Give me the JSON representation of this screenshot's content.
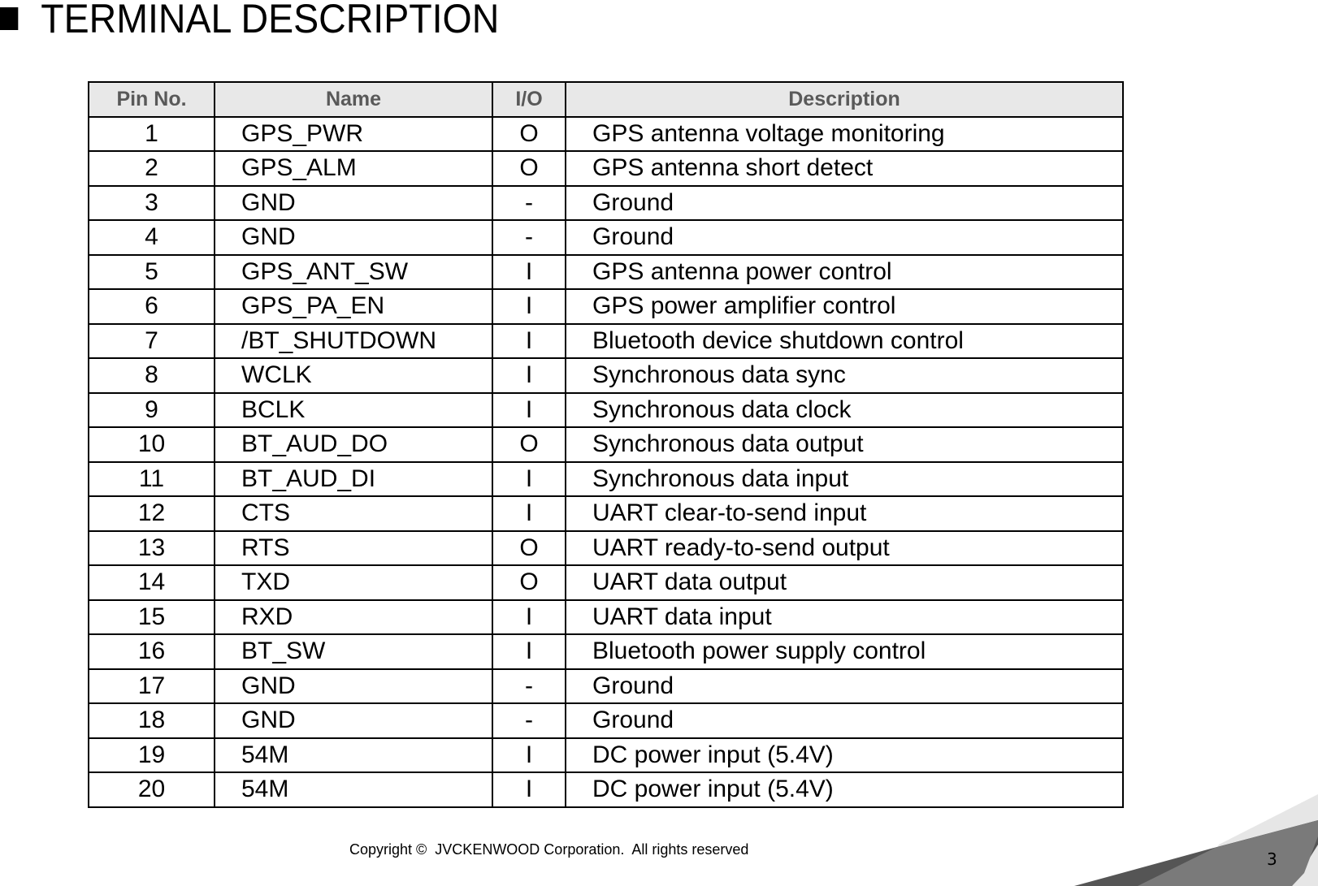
{
  "title": "TERMINAL DESCRIPTION",
  "table": {
    "headers": [
      "Pin No.",
      "Name",
      "I/O",
      "Description"
    ],
    "rows": [
      [
        "1",
        "GPS_PWR",
        "O",
        "GPS antenna voltage monitoring"
      ],
      [
        "2",
        "GPS_ALM",
        "O",
        "GPS antenna short detect"
      ],
      [
        "3",
        "GND",
        "-",
        "Ground"
      ],
      [
        "4",
        "GND",
        "-",
        "Ground"
      ],
      [
        "5",
        "GPS_ANT_SW",
        "I",
        "GPS antenna power control"
      ],
      [
        "6",
        "GPS_PA_EN",
        "I",
        "GPS power amplifier control"
      ],
      [
        "7",
        "/BT_SHUTDOWN",
        "I",
        "Bluetooth device shutdown control"
      ],
      [
        "8",
        "WCLK",
        "I",
        "Synchronous data sync"
      ],
      [
        "9",
        "BCLK",
        "I",
        "Synchronous data clock"
      ],
      [
        "10",
        "BT_AUD_DO",
        "O",
        "Synchronous data output"
      ],
      [
        "11",
        "BT_AUD_DI",
        "I",
        "Synchronous data input"
      ],
      [
        "12",
        "CTS",
        "I",
        "UART clear-to-send input"
      ],
      [
        "13",
        "RTS",
        "O",
        "UART ready-to-send output"
      ],
      [
        "14",
        "TXD",
        "O",
        "UART data output"
      ],
      [
        "15",
        "RXD",
        "I",
        "UART data input"
      ],
      [
        "16",
        "BT_SW",
        "I",
        "Bluetooth power supply control"
      ],
      [
        "17",
        "GND",
        "-",
        "Ground"
      ],
      [
        "18",
        "GND",
        "-",
        "Ground"
      ],
      [
        "19",
        "54M",
        "I",
        "DC power input (5.4V)"
      ],
      [
        "20",
        "54M",
        "I",
        "DC power input (5.4V)"
      ]
    ]
  },
  "footer": "Copyright ©  JVCKENWOOD Corporation.  All rights reserved",
  "page_number": "3",
  "colors": {
    "header_bg": "#e8e8e8",
    "header_text": "#595959"
  }
}
